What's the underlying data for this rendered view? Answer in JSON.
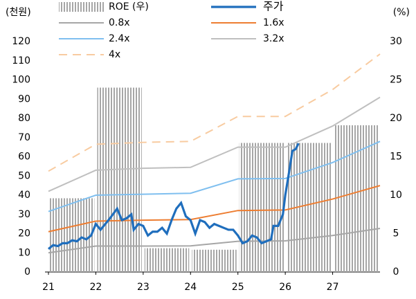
{
  "chart_data": {
    "type": "combo",
    "y_label": "(천원)",
    "y2_label": "(%)",
    "xlim": [
      21,
      28
    ],
    "xticks": [
      21,
      22,
      23,
      24,
      25,
      26,
      27
    ],
    "ylim": [
      0,
      120
    ],
    "yticks": [
      0,
      10,
      20,
      30,
      40,
      50,
      60,
      70,
      80,
      90,
      100,
      110,
      120
    ],
    "y2lim": [
      0,
      30
    ],
    "y2ticks": [
      0,
      5,
      10,
      15,
      20,
      25,
      30
    ],
    "series": [
      {
        "name": "ROE (우)",
        "type": "bar",
        "axis": "y2",
        "color": "#a6a6a6",
        "x": [
          21,
          22,
          23,
          24,
          25,
          26,
          27
        ],
        "values": [
          9.6,
          24,
          3.1,
          2.9,
          16.8,
          16.8,
          19.1
        ]
      },
      {
        "name": "주가",
        "type": "line",
        "color": "#1f6ebd",
        "x": [
          21,
          21.1,
          21.2,
          21.3,
          21.4,
          21.5,
          21.6,
          21.7,
          21.8,
          21.9,
          22,
          22.1,
          22.2,
          22.3,
          22.45,
          22.55,
          22.65,
          22.75,
          22.8,
          22.9,
          23,
          23.1,
          23.2,
          23.3,
          23.4,
          23.5,
          23.6,
          23.7,
          23.8,
          23.9,
          24,
          24.1,
          24.2,
          24.3,
          24.4,
          24.5,
          24.6,
          24.7,
          24.8,
          24.9,
          25,
          25.1,
          25.2,
          25.3,
          25.4,
          25.5,
          25.6,
          25.7,
          25.75,
          25.85,
          25.95,
          26,
          26.08,
          26.15,
          26.22,
          26.28
        ],
        "values": [
          12,
          14,
          13.5,
          15,
          15,
          16.5,
          16,
          18,
          17,
          19,
          25,
          22,
          25,
          28,
          33,
          27,
          28,
          30,
          22,
          25,
          24,
          19,
          21,
          21,
          23,
          20,
          27,
          33,
          36,
          29,
          27,
          20,
          27,
          26,
          23,
          25,
          24,
          23,
          22,
          22,
          19,
          15,
          16,
          19,
          18,
          15,
          16,
          17,
          24,
          24,
          30,
          40,
          52,
          63,
          64,
          67
        ]
      },
      {
        "name": "0.8x",
        "type": "line",
        "color": "#a6a6a6",
        "x": [
          21,
          22,
          23,
          24,
          25,
          26,
          27,
          28
        ],
        "values": [
          10,
          13.5,
          13.5,
          13.6,
          16,
          16.2,
          19,
          22.7
        ]
      },
      {
        "name": "1.6x",
        "type": "line",
        "color": "#ed7d31",
        "x": [
          21,
          22,
          23,
          24,
          25,
          26,
          27,
          28
        ],
        "values": [
          21,
          26.5,
          27,
          27.3,
          32,
          32.3,
          38,
          45
        ]
      },
      {
        "name": "2.4x",
        "type": "line",
        "color": "#7fbfef",
        "x": [
          21,
          22,
          23,
          24,
          25,
          26,
          27,
          28
        ],
        "values": [
          31.5,
          40,
          40.5,
          41,
          48.5,
          48.7,
          57,
          68
        ]
      },
      {
        "name": "3.2x",
        "type": "line",
        "color": "#bfbfbf",
        "x": [
          21,
          22,
          23,
          24,
          25,
          26,
          27,
          28
        ],
        "values": [
          42,
          53,
          54,
          54.5,
          65,
          65,
          76,
          91
        ]
      },
      {
        "name": "4x",
        "type": "line",
        "color": "#f8cba0",
        "dash": true,
        "x": [
          21,
          22,
          23,
          24,
          25,
          26,
          27,
          28
        ],
        "values": [
          52.5,
          66.5,
          67.5,
          68,
          81,
          81,
          95,
          113.5
        ]
      }
    ]
  }
}
